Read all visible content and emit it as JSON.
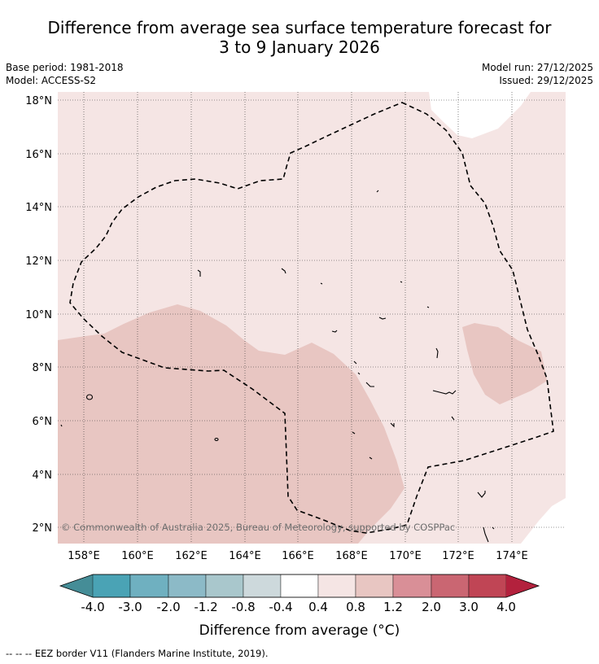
{
  "header": {
    "title_line1": "Difference from average sea surface temperature forecast for",
    "title_line2": "3 to 9 January 2026",
    "base_period": "Base period: 1981-2018",
    "model": "Model: ACCESS-S2",
    "model_run": "Model run: 27/12/2025",
    "issued": "Issued: 29/12/2025"
  },
  "map": {
    "lat_labels": [
      "18°N",
      "16°N",
      "14°N",
      "12°N",
      "10°N",
      "8°N",
      "6°N",
      "4°N",
      "2°N"
    ],
    "lon_labels": [
      "158°E",
      "160°E",
      "162°E",
      "164°E",
      "166°E",
      "168°E",
      "170°E",
      "172°E",
      "174°E"
    ],
    "copyright": "© Commonwealth of Australia 2025, Bureau of Meteorology, supported by COSPPac",
    "eez_line_style": "dashed-black"
  },
  "colorbar": {
    "ticks": [
      "-4.0",
      "-3.0",
      "-2.0",
      "-1.2",
      "-0.8",
      "-0.4",
      "0.4",
      "0.8",
      "1.2",
      "2.0",
      "3.0",
      "4.0"
    ],
    "colors": [
      "#458d97",
      "#4aa3b5",
      "#6fb0c0",
      "#8cbac7",
      "#a9c7cc",
      "#cdd9dc",
      "#ffffff",
      "#f5e5e4",
      "#e8c6c2",
      "#d98f97",
      "#ca6672",
      "#c04555",
      "#b3213d"
    ],
    "label": "Difference from average (°C)"
  },
  "footer": {
    "legend": "--  --  -- EEZ border V11 (Flanders Marine Institute, 2019)."
  }
}
